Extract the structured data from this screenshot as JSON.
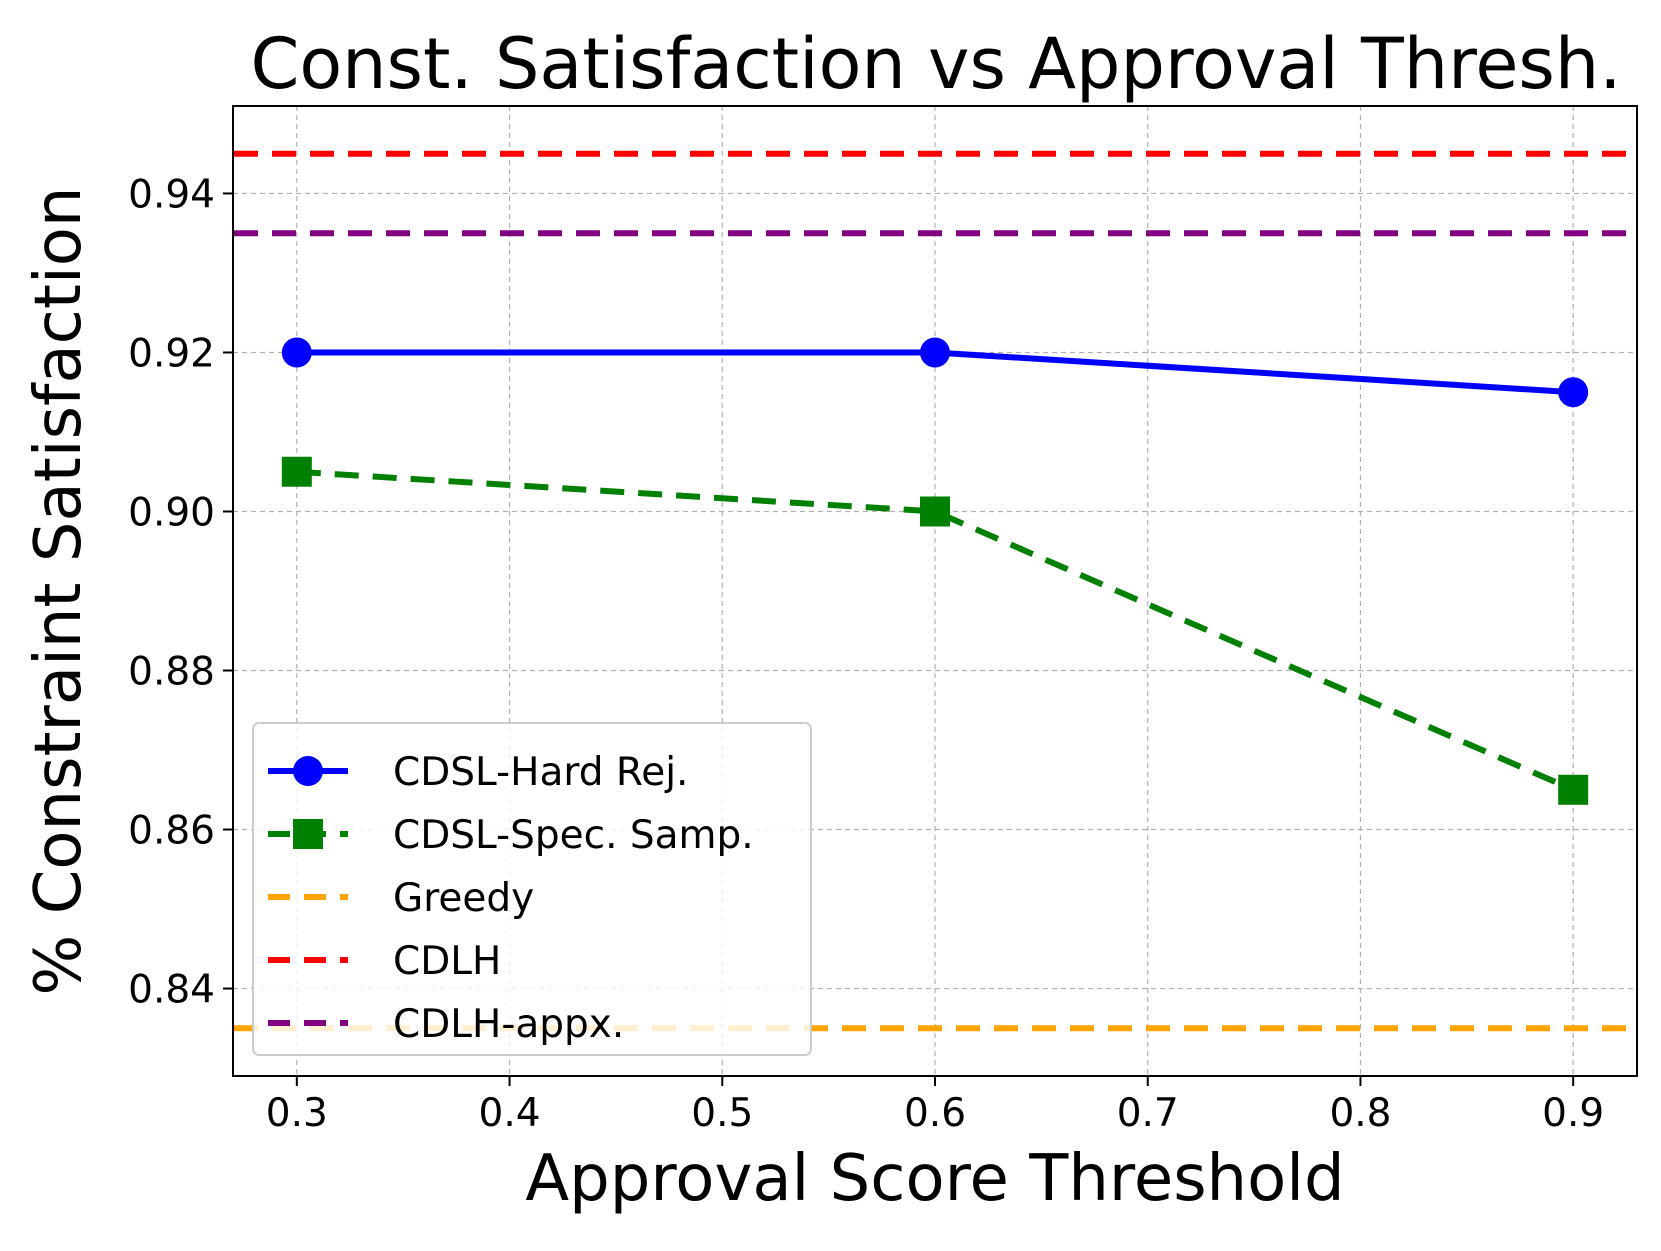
{
  "chart_data": {
    "type": "line",
    "title": "Const. Satisfaction vs Approval Thresh.",
    "xlabel": "Approval Score Threshold",
    "ylabel": "% Constraint Satisfaction",
    "xlim": [
      0.27,
      0.93
    ],
    "ylim": [
      0.829,
      0.951
    ],
    "grid": true,
    "legend_position": "lower-left",
    "xticks": [
      0.3,
      0.4,
      0.5,
      0.6,
      0.7,
      0.8,
      0.9
    ],
    "xtick_labels": [
      "0.3",
      "0.4",
      "0.5",
      "0.6",
      "0.7",
      "0.8",
      "0.9"
    ],
    "yticks": [
      0.84,
      0.86,
      0.88,
      0.9,
      0.92,
      0.94
    ],
    "ytick_labels": [
      "0.84",
      "0.86",
      "0.88",
      "0.90",
      "0.92",
      "0.94"
    ],
    "series": [
      {
        "name": "CDSL-Hard Rej.",
        "kind": "line",
        "color": "#0000ff",
        "linestyle": "solid",
        "marker": "circle",
        "x": [
          0.3,
          0.6,
          0.9
        ],
        "y": [
          0.92,
          0.92,
          0.915
        ]
      },
      {
        "name": "CDSL-Spec. Samp.",
        "kind": "line",
        "color": "#008000",
        "linestyle": "dashed",
        "marker": "square",
        "x": [
          0.3,
          0.6,
          0.9
        ],
        "y": [
          0.905,
          0.9,
          0.865
        ]
      },
      {
        "name": "Greedy",
        "kind": "hline",
        "color": "#ffa500",
        "linestyle": "dashed",
        "y": 0.835
      },
      {
        "name": "CDLH",
        "kind": "hline",
        "color": "#ff0000",
        "linestyle": "dashed",
        "y": 0.945
      },
      {
        "name": "CDLH-appx.",
        "kind": "hline",
        "color": "#800080",
        "linestyle": "dashed",
        "y": 0.935
      }
    ]
  }
}
